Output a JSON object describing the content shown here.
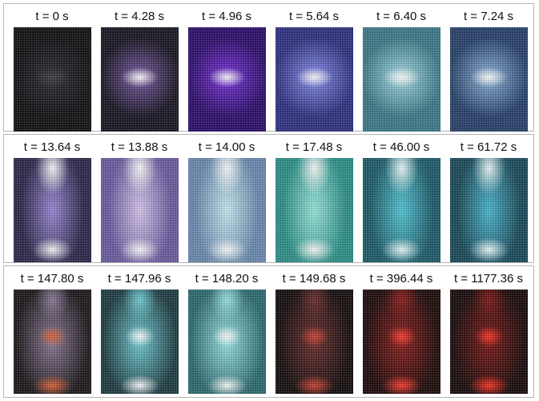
{
  "rows": [
    {
      "panels": [
        {
          "label": "t = 0 s",
          "bg": "#0d0d10",
          "glow": "#2a2a30",
          "core": "#3a3a40"
        },
        {
          "label": "t = 4.28 s",
          "bg": "#151220",
          "glow": "#7a5aa8",
          "core": "#ffffff"
        },
        {
          "label": "t = 4.96 s",
          "bg": "#2a0a6a",
          "glow": "#7a30e0",
          "core": "#ffffff"
        },
        {
          "label": "t = 5.64 s",
          "bg": "#2c2f80",
          "glow": "#8a8ff0",
          "core": "#ffffff"
        },
        {
          "label": "t = 6.40 s",
          "bg": "#3a7a88",
          "glow": "#a8e0ea",
          "core": "#ffffff"
        },
        {
          "label": "t = 7.24 s",
          "bg": "#24406a",
          "glow": "#90b8e0",
          "core": "#ffffff"
        }
      ]
    },
    {
      "panels": [
        {
          "label": "t = 13.64 s",
          "bg": "#2a2448",
          "glow": "#9a88d8",
          "core": "#ffffff"
        },
        {
          "label": "t = 13.88 s",
          "bg": "#6a5aa0",
          "glow": "#d8c8f0",
          "core": "#ffffff"
        },
        {
          "label": "t = 14.00 s",
          "bg": "#6a8ab0",
          "glow": "#c8ecf4",
          "core": "#ffffff"
        },
        {
          "label": "t = 17.48 s",
          "bg": "#2a9088",
          "glow": "#9aeae0",
          "core": "#ffffff"
        },
        {
          "label": "t = 46.00 s",
          "bg": "#1a5a68",
          "glow": "#50c8d8",
          "core": "#f0ffff"
        },
        {
          "label": "t = 61.72 s",
          "bg": "#174858",
          "glow": "#48b8d0",
          "core": "#f0ffff"
        }
      ]
    },
    {
      "panels": [
        {
          "label": "t = 147.80 s",
          "bg": "#1a1418",
          "glow": "#8a7a98",
          "core": "#e06030"
        },
        {
          "label": "t = 147.96 s",
          "bg": "#1a3a40",
          "glow": "#70d0d8",
          "core": "#ffffff"
        },
        {
          "label": "t = 148.20 s",
          "bg": "#2a6a70",
          "glow": "#9ae8ea",
          "core": "#ffffff"
        },
        {
          "label": "t = 149.68 s",
          "bg": "#100808",
          "glow": "#6a2a2a",
          "core": "#d04030"
        },
        {
          "label": "t = 396.44 s",
          "bg": "#1a0606",
          "glow": "#8a1a18",
          "core": "#ff3a2a"
        },
        {
          "label": "t = 1177.36 s",
          "bg": "#140606",
          "glow": "#7a1412",
          "core": "#ff3020"
        }
      ]
    }
  ]
}
